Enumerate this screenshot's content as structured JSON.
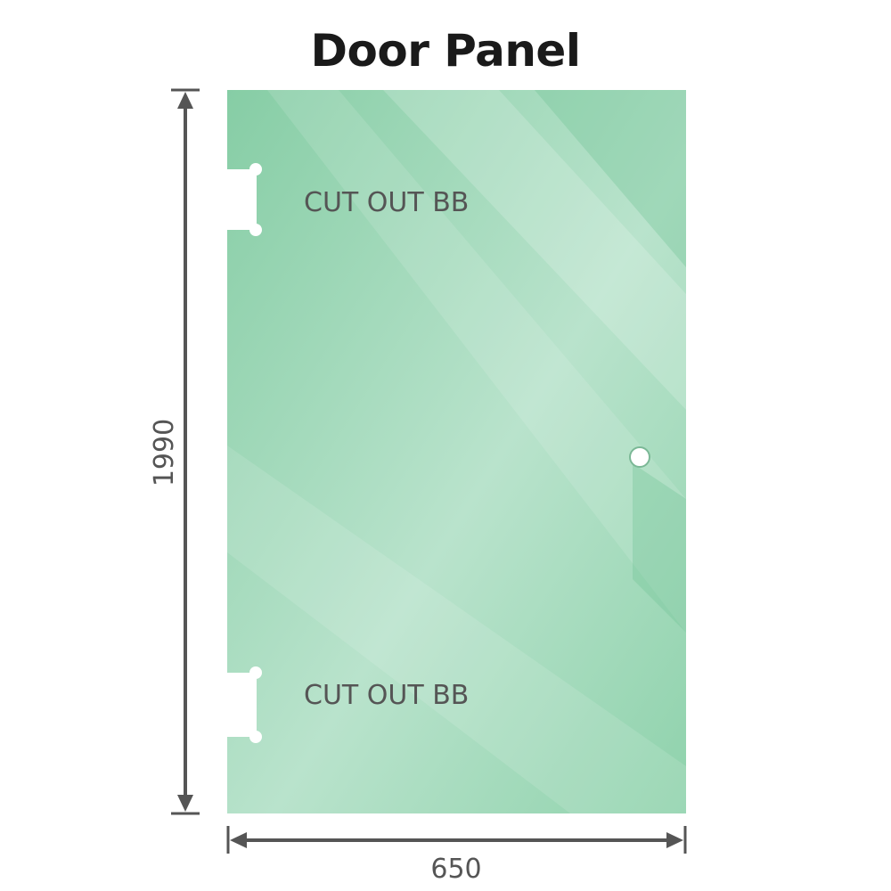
{
  "title": "Door Panel",
  "panel": {
    "color": "#8dd0aa",
    "cutout_labels": [
      "CUT OUT BB",
      "CUT OUT BB"
    ]
  },
  "dimensions": {
    "height": "1990",
    "width": "650",
    "line_color": "#555555"
  }
}
